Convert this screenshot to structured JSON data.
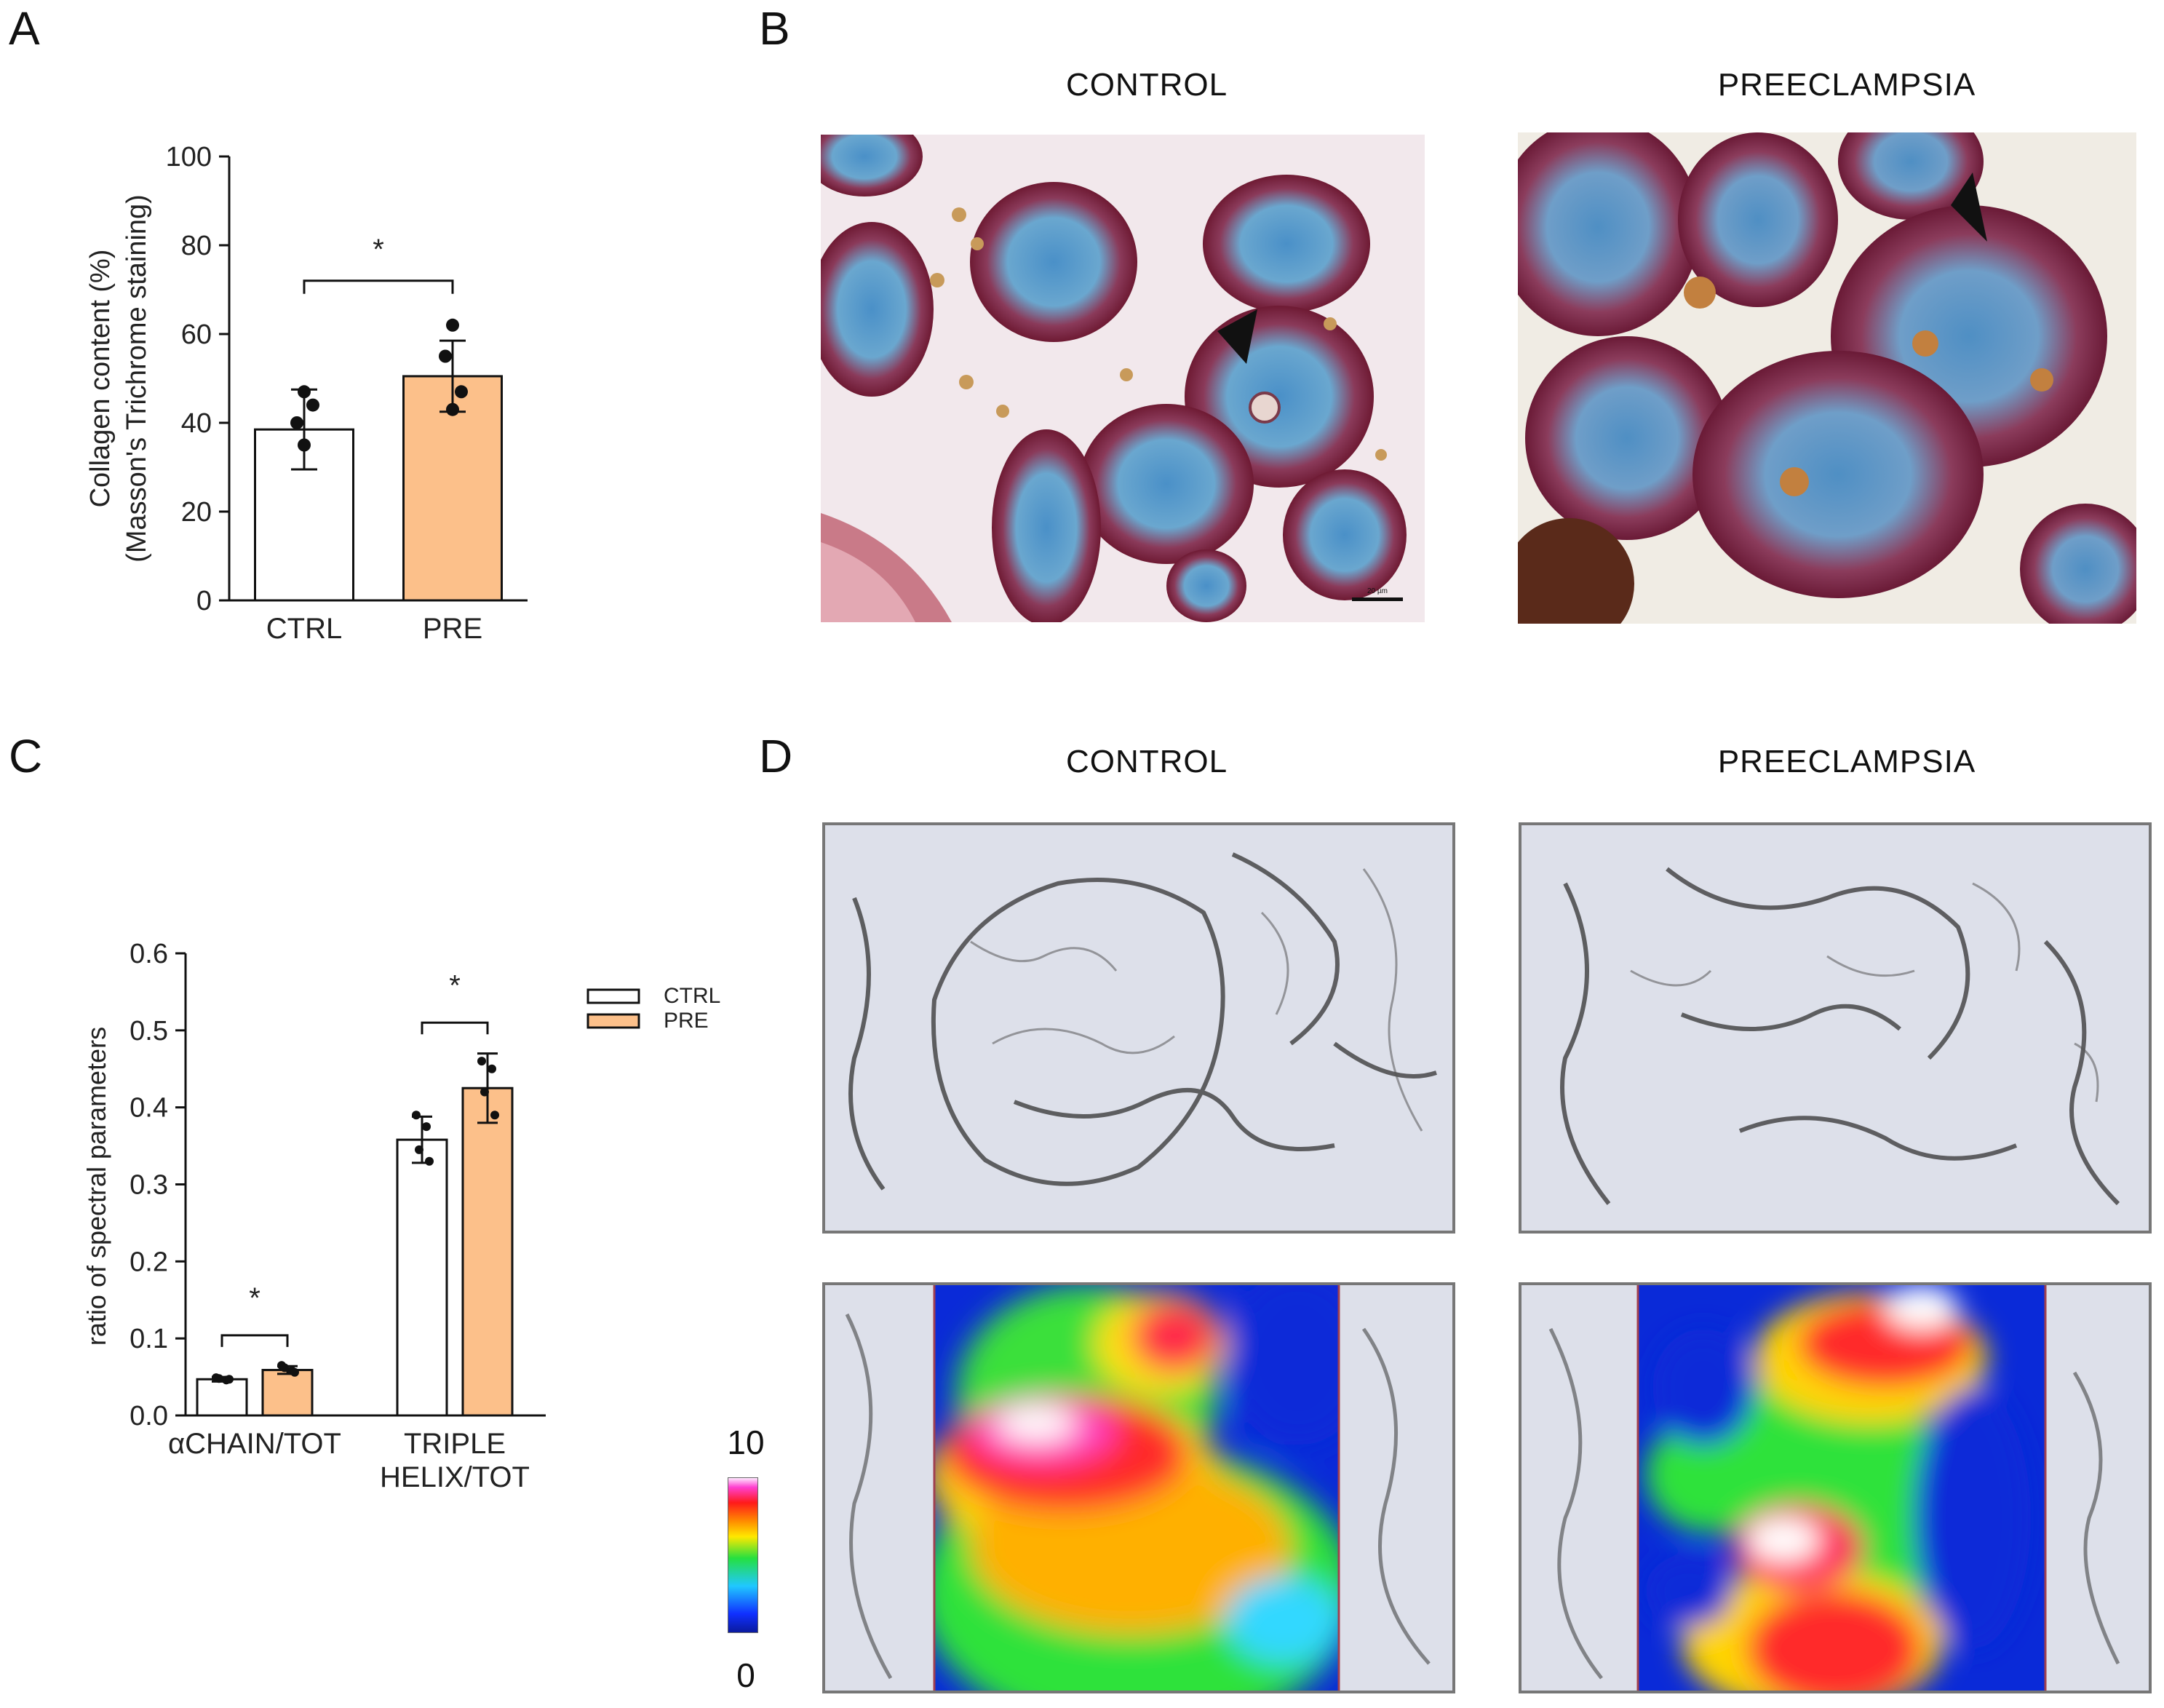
{
  "panels": {
    "A": {
      "letter": "A"
    },
    "B": {
      "letter": "B",
      "left_title": "CONTROL",
      "right_title": "PREECLAMPSIA",
      "scale_bar_label": "20 µm"
    },
    "C": {
      "letter": "C"
    },
    "D": {
      "letter": "D",
      "left_title": "CONTROL",
      "right_title": "PREECLAMPSIA",
      "colorbar": {
        "max_label": "10",
        "min_label": "0"
      }
    }
  },
  "chart_data": [
    {
      "id": "A",
      "type": "bar",
      "categories": [
        "CTRL",
        "PRE"
      ],
      "values": [
        38.5,
        50.5
      ],
      "error": [
        9,
        8
      ],
      "points": [
        [
          47,
          40,
          44,
          35
        ],
        [
          62,
          55,
          47,
          43
        ]
      ],
      "colors": [
        "#ffffff",
        "#fcc08a"
      ],
      "ylabel_line1": "Collagen content (%)",
      "ylabel_line2": "(Masson's Trichrome staining)",
      "ylim": [
        0,
        100
      ],
      "yticks": [
        "0",
        "20",
        "40",
        "60",
        "80",
        "100"
      ],
      "significance": "*"
    },
    {
      "id": "C",
      "type": "bar",
      "categories": [
        "αCHAIN/TOT",
        "TRIPLE HELIX/TOT"
      ],
      "category_lines": [
        [
          "αCHAIN/TOT"
        ],
        [
          "TRIPLE",
          "HELIX/TOT"
        ]
      ],
      "series": [
        {
          "name": "CTRL",
          "color": "#ffffff",
          "values": [
            0.047,
            0.358
          ],
          "error": [
            0.003,
            0.03
          ],
          "points": [
            [
              0.049,
              0.046,
              0.048,
              0.047
            ],
            [
              0.39,
              0.375,
              0.345,
              0.33
            ]
          ]
        },
        {
          "name": "PRE",
          "color": "#fcc08a",
          "values": [
            0.059,
            0.425
          ],
          "error": [
            0.005,
            0.045
          ],
          "points": [
            [
              0.065,
              0.058,
              0.062,
              0.056
            ],
            [
              0.46,
              0.45,
              0.42,
              0.39
            ]
          ]
        }
      ],
      "ylabel": "ratio of spectral parameters",
      "ylim": [
        0,
        0.6
      ],
      "yticks": [
        "0.0",
        "0.1",
        "0.2",
        "0.3",
        "0.4",
        "0.5",
        "0.6"
      ],
      "significance": [
        "*",
        "*"
      ],
      "legend_position": "right"
    }
  ]
}
